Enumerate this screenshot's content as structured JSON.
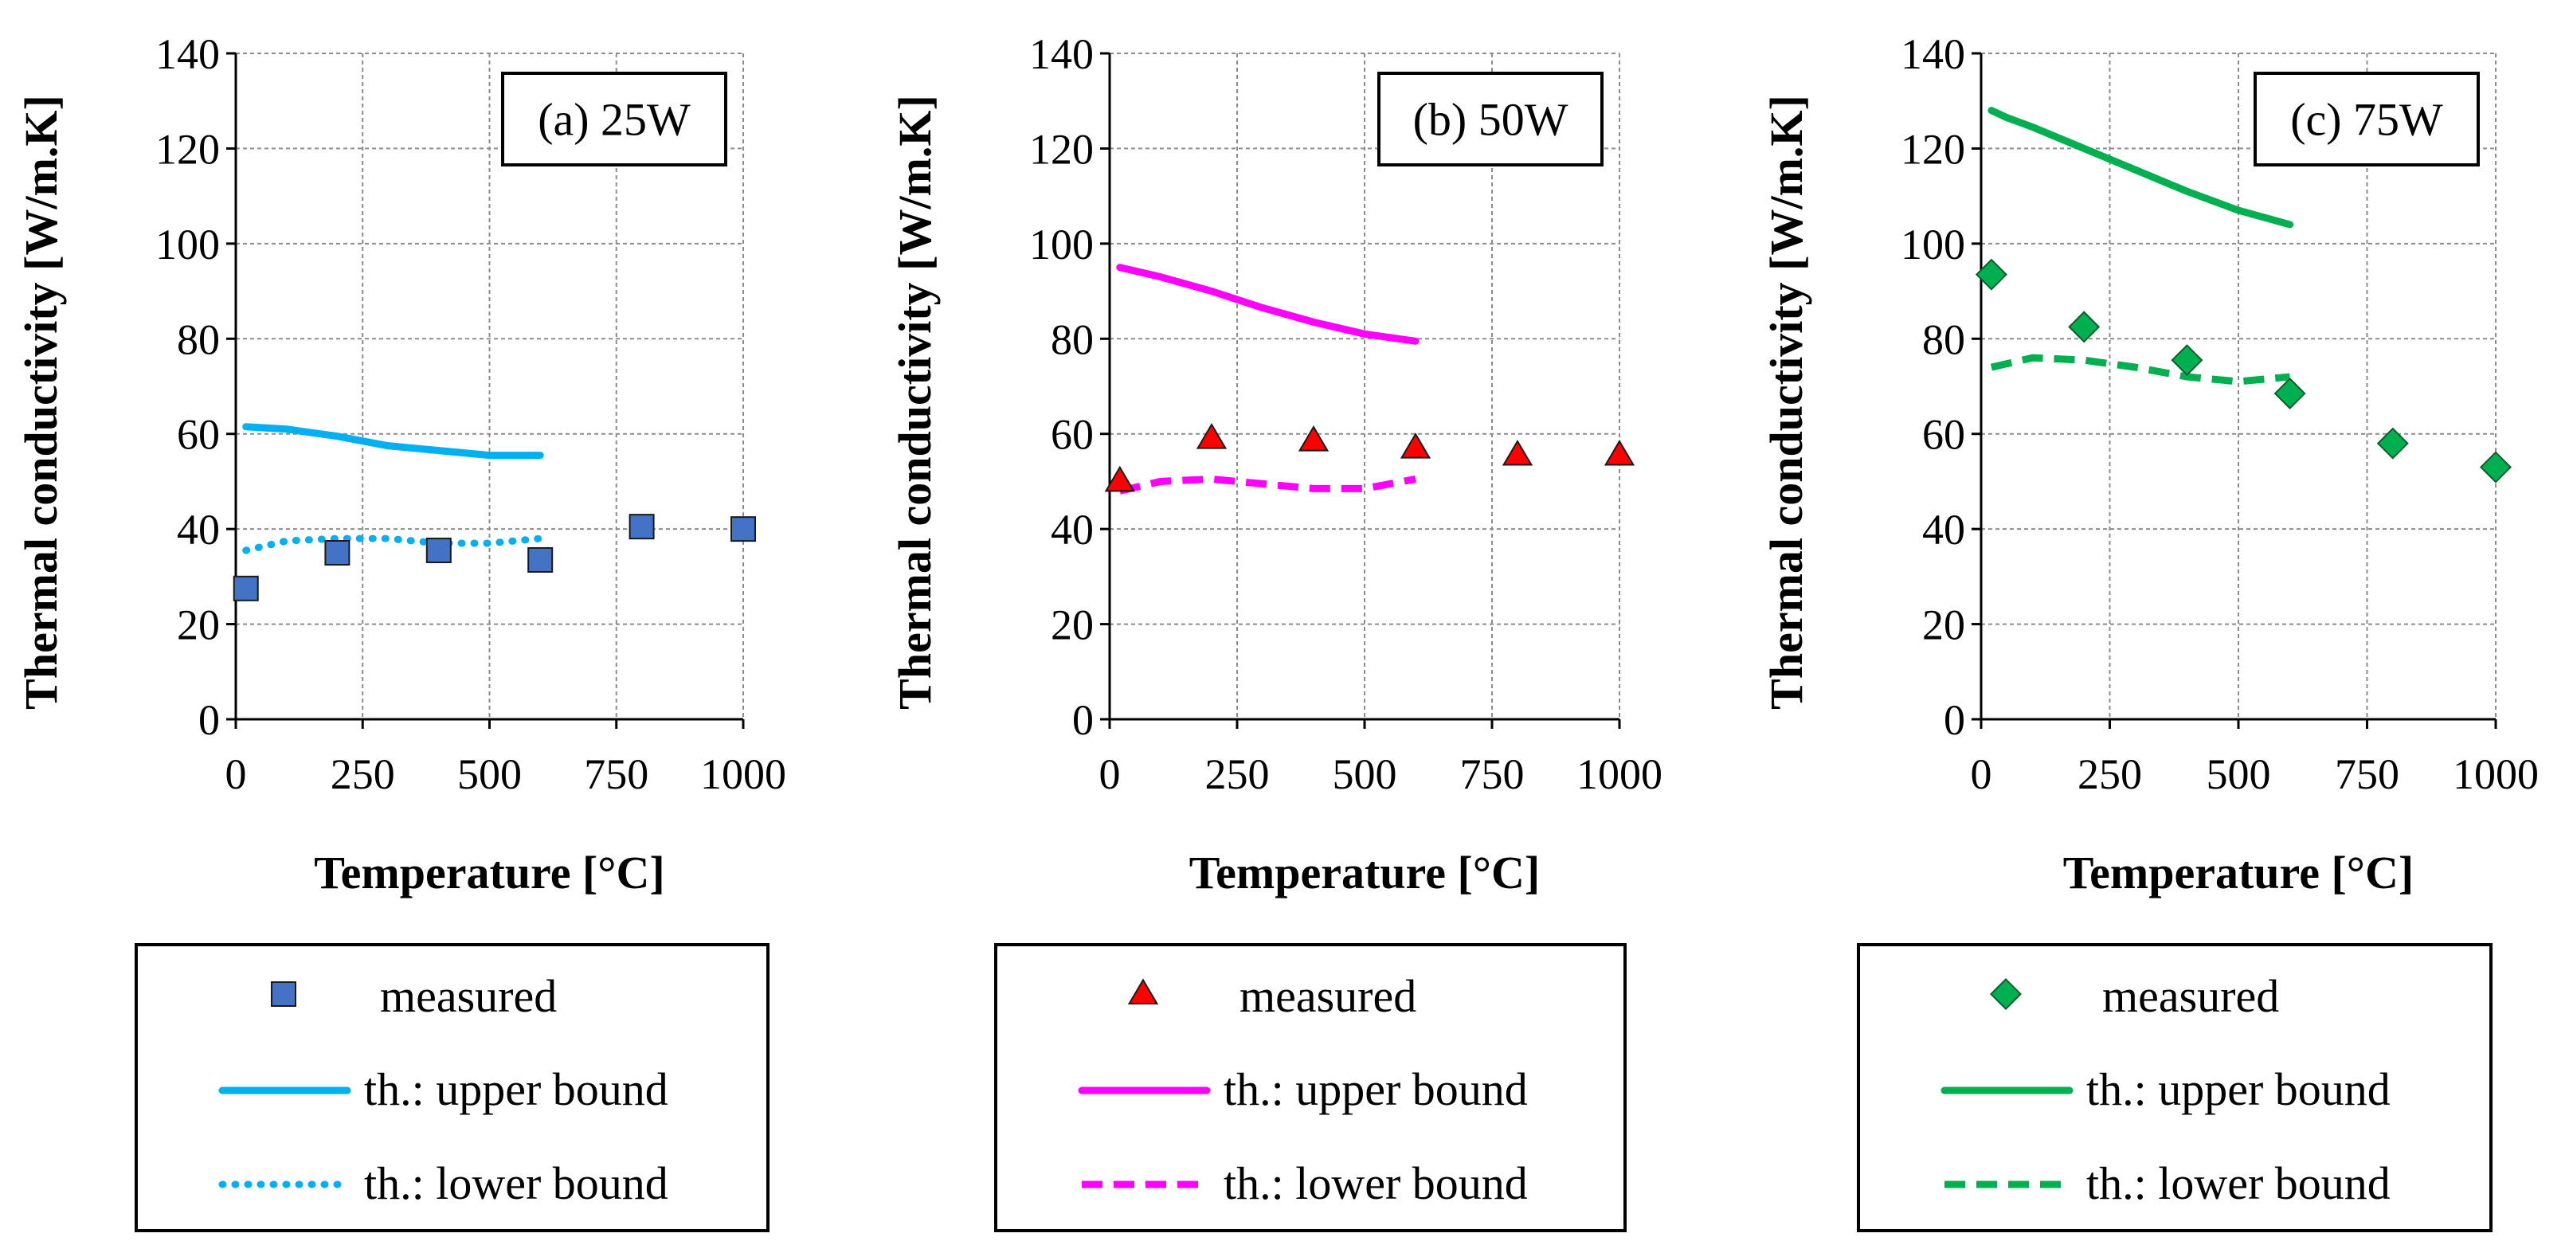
{
  "chart_data": [
    {
      "type": "scatter",
      "panel_label": "(a) 25W",
      "xlabel": "Temperature [°C]",
      "ylabel": "Thermal conductivity [W/m.K]",
      "xlim": [
        0,
        1000
      ],
      "ylim": [
        0,
        140
      ],
      "x_ticks": [
        "0",
        "250",
        "500",
        "750",
        "1000"
      ],
      "y_ticks": [
        "0",
        "20",
        "40",
        "60",
        "80",
        "100",
        "120",
        "140"
      ],
      "grid": true,
      "color": "#00b0f0",
      "marker_color": "#4472c4",
      "marker": "square",
      "series": [
        {
          "name": "measured",
          "kind": "marker",
          "x": [
            20,
            200,
            400,
            600,
            800,
            1000
          ],
          "y": [
            27.5,
            35,
            35.5,
            33.5,
            40.5,
            40
          ]
        },
        {
          "name": "th.: upper bound",
          "kind": "line",
          "style": "solid",
          "x": [
            20,
            100,
            200,
            300,
            400,
            500,
            600
          ],
          "y": [
            61.5,
            61.0,
            59.5,
            57.5,
            56.5,
            55.5,
            55.5
          ]
        },
        {
          "name": "th.: lower bound",
          "kind": "line",
          "style": "dotted",
          "x": [
            20,
            100,
            200,
            300,
            400,
            500,
            600
          ],
          "y": [
            35.5,
            37.5,
            38.0,
            38.0,
            37.0,
            37.0,
            38.0
          ]
        }
      ]
    },
    {
      "type": "scatter",
      "panel_label": "(b) 50W",
      "xlabel": "Temperature [°C]",
      "ylabel": "Thermal conductivity [W/m.K]",
      "xlim": [
        0,
        1000
      ],
      "ylim": [
        0,
        140
      ],
      "x_ticks": [
        "0",
        "250",
        "500",
        "750",
        "1000"
      ],
      "y_ticks": [
        "0",
        "20",
        "40",
        "60",
        "80",
        "100",
        "120",
        "140"
      ],
      "grid": true,
      "color": "#ff00ff",
      "marker_color": "#ff0000",
      "marker": "triangle",
      "series": [
        {
          "name": "measured",
          "kind": "marker",
          "x": [
            20,
            200,
            400,
            600,
            800,
            1000
          ],
          "y": [
            50,
            59,
            58.5,
            57,
            55.5,
            55.5
          ]
        },
        {
          "name": "th.: upper bound",
          "kind": "line",
          "style": "solid",
          "x": [
            20,
            100,
            200,
            300,
            400,
            500,
            600
          ],
          "y": [
            95,
            93,
            90,
            86.5,
            83.5,
            81,
            79.5
          ]
        },
        {
          "name": "th.: lower bound",
          "kind": "line",
          "style": "dashed",
          "x": [
            20,
            100,
            200,
            300,
            400,
            500,
            600
          ],
          "y": [
            48,
            50,
            50.5,
            49.5,
            48.5,
            48.5,
            50.5
          ]
        }
      ]
    },
    {
      "type": "scatter",
      "panel_label": "(c) 75W",
      "xlabel": "Temperature [°C]",
      "ylabel": "Thermal conductivity [W/m.K]",
      "xlim": [
        0,
        1000
      ],
      "ylim": [
        0,
        140
      ],
      "x_ticks": [
        "0",
        "250",
        "500",
        "750",
        "1000"
      ],
      "y_ticks": [
        "0",
        "20",
        "40",
        "60",
        "80",
        "100",
        "120",
        "140"
      ],
      "grid": true,
      "color": "#00b050",
      "marker_color": "#00b050",
      "marker": "diamond",
      "series": [
        {
          "name": "measured",
          "kind": "marker",
          "x": [
            20,
            200,
            400,
            600,
            800,
            1000
          ],
          "y": [
            93.5,
            82.5,
            75.5,
            68.5,
            58,
            53
          ]
        },
        {
          "name": "th.: upper bound",
          "kind": "line",
          "style": "solid",
          "x": [
            20,
            50,
            100,
            200,
            300,
            400,
            500,
            600
          ],
          "y": [
            128,
            126.5,
            124.5,
            120,
            115.5,
            111,
            107,
            104
          ]
        },
        {
          "name": "th.: lower bound",
          "kind": "line",
          "style": "dashed",
          "x": [
            20,
            100,
            200,
            300,
            400,
            500,
            600
          ],
          "y": [
            74,
            76,
            75.5,
            74,
            72,
            71,
            72
          ]
        }
      ]
    }
  ]
}
